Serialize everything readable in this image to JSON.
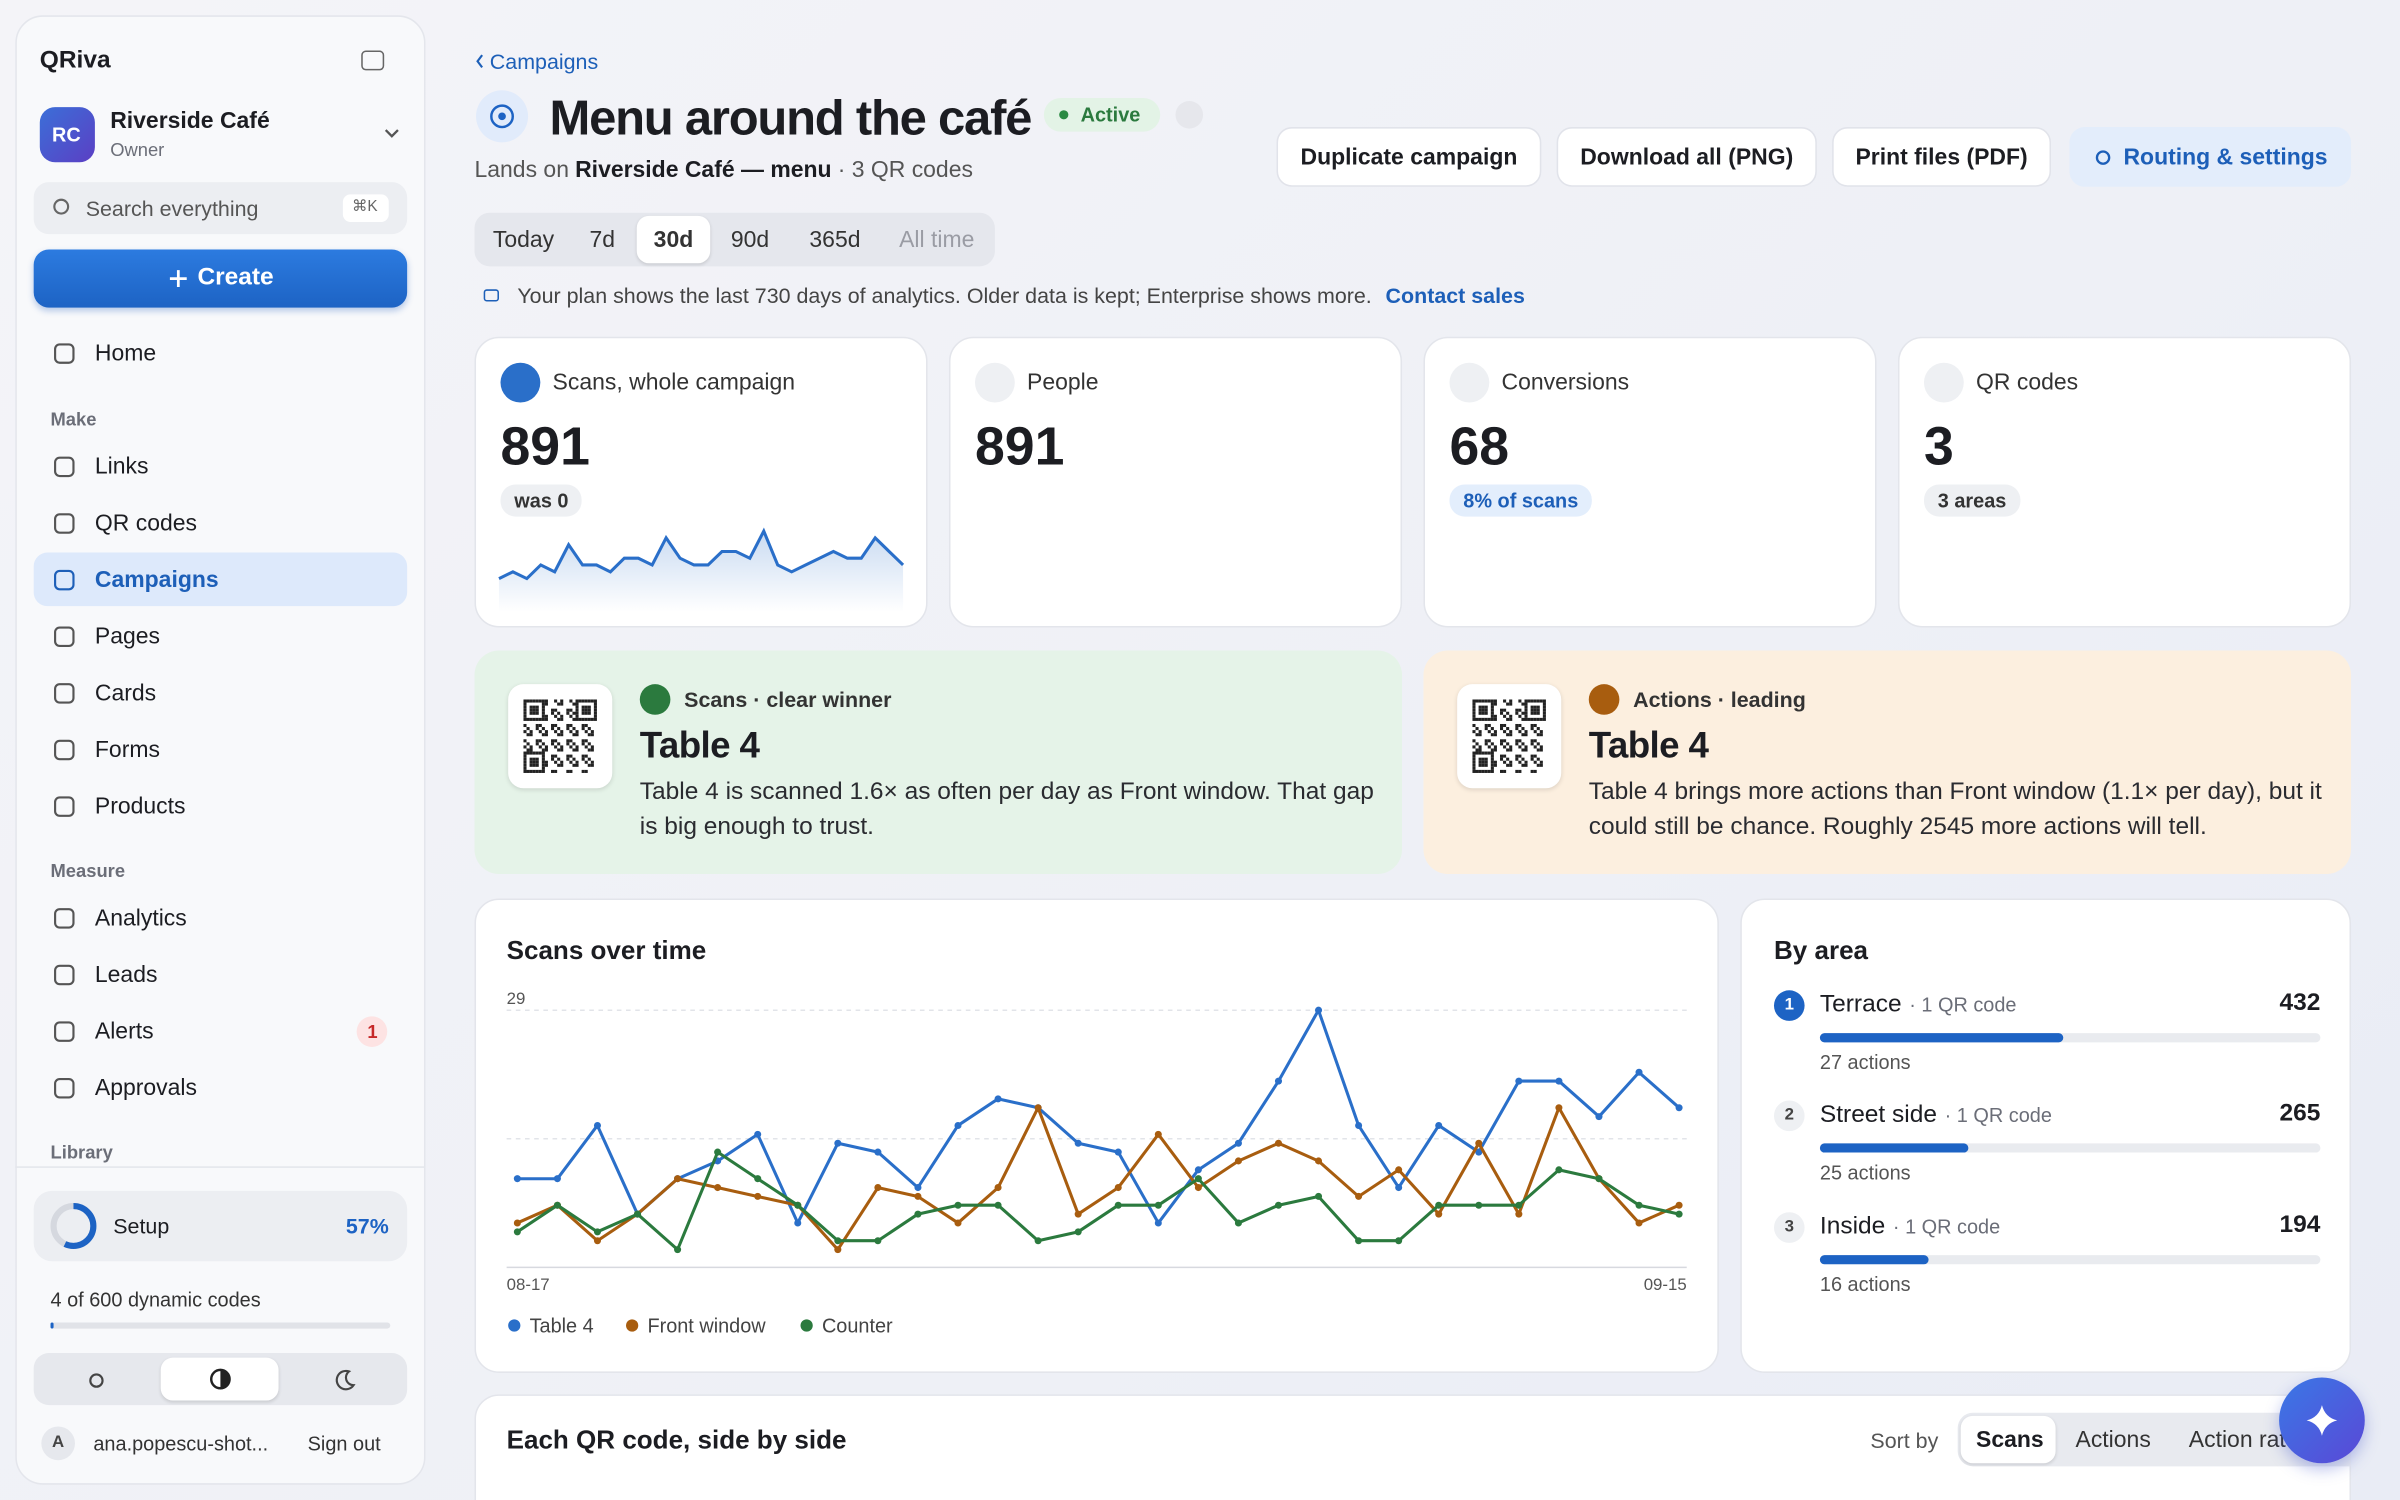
{
  "sidebar": {
    "brand": "QRiva",
    "workspace": {
      "initials": "RC",
      "name": "Riverside Café",
      "role": "Owner"
    },
    "search": "Search everything",
    "shortcut": "⌘K",
    "create": "Create",
    "home": "Home",
    "groups": [
      {
        "heading": "Make",
        "items": [
          "Links",
          "QR codes",
          "Campaigns",
          "Pages",
          "Cards",
          "Forms",
          "Products"
        ]
      },
      {
        "heading": "Measure",
        "items": [
          "Analytics",
          "Leads",
          "Alerts",
          "Approvals"
        ]
      },
      {
        "heading": "Library",
        "items": []
      }
    ],
    "alerts_badge": "1",
    "setup": {
      "label": "Setup",
      "value": 57,
      "value_label": "57%"
    },
    "usage": "4 of 600 dynamic codes",
    "account": {
      "initial": "A",
      "email": "ana.popescu-shot...",
      "sign_out": "Sign out"
    }
  },
  "header": {
    "breadcrumb": "Campaigns",
    "title": "Menu around the café",
    "status": "Active",
    "subtitle": {
      "prefix": "Lands on",
      "target": "Riverside Café — menu",
      "suffix": "· 3 QR codes"
    },
    "actions": [
      "Duplicate campaign",
      "Download all (PNG)",
      "Print files (PDF)",
      "Routing & settings"
    ],
    "ranges": [
      "Today",
      "7d",
      "30d",
      "90d",
      "365d",
      "All time"
    ],
    "active_range": 2,
    "notice": "Your plan shows the last 730 days of analytics. Older data is kept; Enterprise shows more.",
    "notice_link": "Contact sales"
  },
  "kpis": [
    {
      "label": "Scans, whole campaign",
      "value": "891",
      "note": "was 0"
    },
    {
      "label": "People",
      "value": "891"
    },
    {
      "label": "Conversions",
      "value": "68",
      "note": "8% of scans"
    },
    {
      "label": "QR codes",
      "value": "3",
      "note": "3 areas"
    }
  ],
  "sparkline": [
    3,
    4,
    3,
    5,
    4,
    8,
    5,
    5,
    4,
    6,
    6,
    5,
    9,
    6,
    5,
    5,
    7,
    7,
    6,
    10,
    5,
    4,
    5,
    6,
    7,
    6,
    6,
    9,
    7,
    5
  ],
  "insights": [
    {
      "tag": "Scans · clear winner",
      "title": "Table 4",
      "body": "Table 4 is scanned 1.6× as often per day as Front window. That gap is big enough to trust."
    },
    {
      "tag": "Actions · leading",
      "title": "Table 4",
      "body": "Table 4 brings more actions than Front window (1.1× per day), but it could still be chance. Roughly 2545 more actions will tell."
    }
  ],
  "chart_data": {
    "type": "line",
    "title": "Scans over time",
    "categories": [
      "08-17",
      null,
      null,
      null,
      null,
      null,
      null,
      null,
      null,
      null,
      null,
      null,
      null,
      null,
      null,
      null,
      null,
      null,
      null,
      null,
      null,
      null,
      null,
      null,
      null,
      null,
      null,
      null,
      null,
      "09-15"
    ],
    "series": [
      {
        "name": "Table 4",
        "color": "#2a6fc9",
        "values": [
          10,
          10,
          16,
          6,
          10,
          12,
          15,
          5,
          14,
          13,
          9,
          16,
          19,
          18,
          14,
          13,
          5,
          11,
          14,
          21,
          29,
          16,
          9,
          16,
          13,
          21,
          21,
          17,
          22,
          18
        ]
      },
      {
        "name": "Front window",
        "color": "#a85d0f",
        "values": [
          5,
          7,
          3,
          6,
          10,
          9,
          8,
          7,
          2,
          9,
          8,
          5,
          9,
          18,
          6,
          9,
          15,
          9,
          12,
          14,
          12,
          8,
          11,
          6,
          14,
          6,
          18,
          10,
          5,
          7
        ]
      },
      {
        "name": "Counter",
        "color": "#2b7a3e",
        "values": [
          4,
          7,
          4,
          6,
          2,
          13,
          10,
          7,
          3,
          3,
          6,
          7,
          7,
          3,
          4,
          7,
          7,
          10,
          5,
          7,
          8,
          3,
          3,
          7,
          7,
          7,
          11,
          10,
          7,
          6
        ]
      }
    ],
    "ylim": [
      0,
      29
    ],
    "yticks": [
      29
    ],
    "grid": true
  },
  "by_area": {
    "title": "By area",
    "rows": [
      {
        "rank": "1",
        "name": "Terrace",
        "detail": "· 1 QR code",
        "value": 432,
        "actions": "27 actions"
      },
      {
        "rank": "2",
        "name": "Street side",
        "detail": "· 1 QR code",
        "value": 265,
        "actions": "25 actions"
      },
      {
        "rank": "3",
        "name": "Inside",
        "detail": "· 1 QR code",
        "value": 194,
        "actions": "16 actions"
      }
    ]
  },
  "table": {
    "title": "Each QR code, side by side",
    "sort_label": "Sort by",
    "sort_options": [
      "Scans",
      "Actions",
      "Action rate"
    ]
  }
}
